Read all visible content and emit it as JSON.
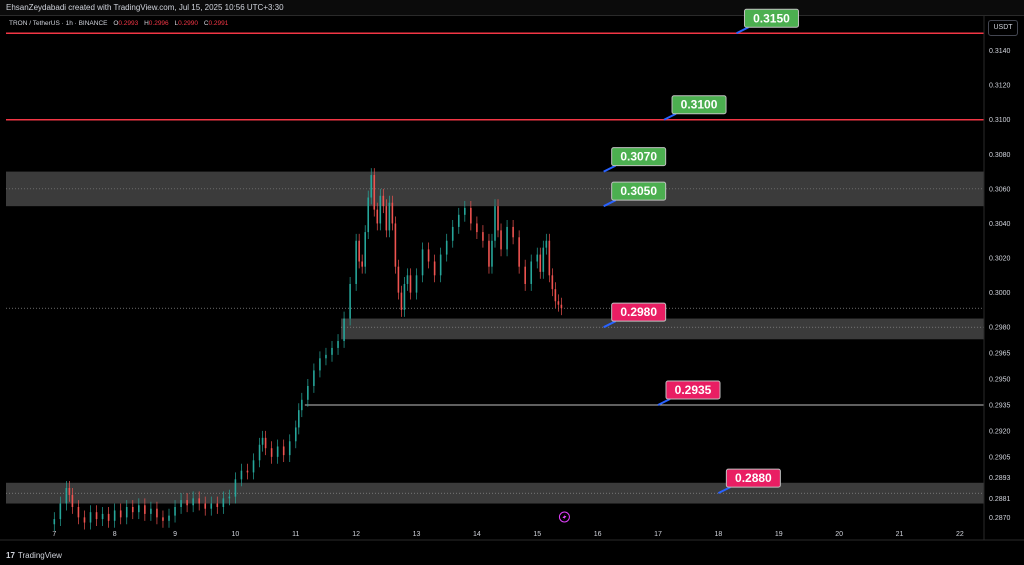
{
  "header": {
    "credit": "EhsanZeydabadi created with TradingView.com, Jul 15, 2025 10:56 UTC+3:30"
  },
  "legend": {
    "symbol": "TRON / TetherUS · 1h · BINANCE",
    "o_label": "O",
    "o_value": "0.2993",
    "h_label": "H",
    "h_value": "0.2996",
    "l_label": "L",
    "l_value": "0.2990",
    "c_label": "C",
    "c_value": "0.2991"
  },
  "currency": "USDT",
  "footer": {
    "logo_text": "TradingView",
    "logo_mark": "17"
  },
  "colors": {
    "bull": "#26a69a",
    "bear": "#ef5350",
    "resistance": "#f23645",
    "label_green": "#4caf50",
    "label_red": "#e91e63",
    "zone": "#6b6b6b",
    "arrow": "#2962ff"
  },
  "icons": {
    "flash": "lightning-circle-icon"
  },
  "chart_data": {
    "type": "candlestick",
    "timeframe": "1h",
    "ylim": [
      0.2865,
      0.316
    ],
    "y_ticks": [
      "0.3140",
      "0.3120",
      "0.3100",
      "0.3080",
      "0.3060",
      "0.3040",
      "0.3020",
      "0.3000",
      "0.2980",
      "0.2965",
      "0.2950",
      "0.2935",
      "0.2920",
      "0.2905",
      "0.2893",
      "0.2881",
      "0.2870"
    ],
    "x_ticks": [
      "7",
      "8",
      "9",
      "10",
      "11",
      "12",
      "13",
      "14",
      "15",
      "16",
      "17",
      "18",
      "19",
      "20",
      "21",
      "22"
    ],
    "last_price": "0.2991",
    "countdown": "33:02",
    "last_price_value": 0.2991,
    "candles": [
      [
        7.0,
        0.2866,
        0.2869
      ],
      [
        7.1,
        0.2869,
        0.2878
      ],
      [
        7.2,
        0.2878,
        0.2887
      ],
      [
        7.25,
        0.2887,
        0.2883
      ],
      [
        7.3,
        0.2883,
        0.2876
      ],
      [
        7.4,
        0.2876,
        0.287
      ],
      [
        7.5,
        0.287,
        0.2867
      ],
      [
        7.6,
        0.2867,
        0.2873
      ],
      [
        7.7,
        0.2873,
        0.2869
      ],
      [
        7.8,
        0.2869,
        0.2872
      ],
      [
        7.9,
        0.2872,
        0.2868
      ],
      [
        8.0,
        0.2868,
        0.2874
      ],
      [
        8.1,
        0.2874,
        0.287
      ],
      [
        8.2,
        0.287,
        0.2876
      ],
      [
        8.3,
        0.2876,
        0.2873
      ],
      [
        8.4,
        0.2873,
        0.2877
      ],
      [
        8.5,
        0.2877,
        0.2872
      ],
      [
        8.6,
        0.2872,
        0.2875
      ],
      [
        8.7,
        0.2875,
        0.287
      ],
      [
        8.8,
        0.287,
        0.2868
      ],
      [
        8.9,
        0.2868,
        0.2871
      ],
      [
        9.0,
        0.2871,
        0.2876
      ],
      [
        9.1,
        0.2876,
        0.288
      ],
      [
        9.2,
        0.288,
        0.2877
      ],
      [
        9.3,
        0.2877,
        0.2881
      ],
      [
        9.4,
        0.2881,
        0.2878
      ],
      [
        9.5,
        0.2878,
        0.2875
      ],
      [
        9.6,
        0.2875,
        0.2878
      ],
      [
        9.7,
        0.2878,
        0.2876
      ],
      [
        9.8,
        0.2876,
        0.2881
      ],
      [
        9.9,
        0.2881,
        0.2882
      ],
      [
        10.0,
        0.2882,
        0.2892
      ],
      [
        10.1,
        0.2892,
        0.2897
      ],
      [
        10.2,
        0.2897,
        0.2896
      ],
      [
        10.3,
        0.2896,
        0.2903
      ],
      [
        10.4,
        0.2903,
        0.2912
      ],
      [
        10.45,
        0.2912,
        0.2916
      ],
      [
        10.5,
        0.2916,
        0.291
      ],
      [
        10.6,
        0.291,
        0.2905
      ],
      [
        10.7,
        0.2905,
        0.2911
      ],
      [
        10.8,
        0.2911,
        0.2906
      ],
      [
        10.9,
        0.2906,
        0.2914
      ],
      [
        11.0,
        0.2914,
        0.2922
      ],
      [
        11.05,
        0.2922,
        0.2932
      ],
      [
        11.1,
        0.2932,
        0.2938
      ],
      [
        11.2,
        0.2938,
        0.2946
      ],
      [
        11.3,
        0.2946,
        0.2955
      ],
      [
        11.4,
        0.2955,
        0.2962
      ],
      [
        11.5,
        0.2962,
        0.2964
      ],
      [
        11.6,
        0.2964,
        0.2968
      ],
      [
        11.7,
        0.2968,
        0.2972
      ],
      [
        11.8,
        0.2972,
        0.2985
      ],
      [
        11.9,
        0.2985,
        0.3005
      ],
      [
        12.0,
        0.3005,
        0.303
      ],
      [
        12.05,
        0.303,
        0.3018
      ],
      [
        12.1,
        0.3018,
        0.3015
      ],
      [
        12.15,
        0.3015,
        0.3035
      ],
      [
        12.2,
        0.3035,
        0.3055
      ],
      [
        12.25,
        0.3055,
        0.3068
      ],
      [
        12.3,
        0.3068,
        0.3048
      ],
      [
        12.35,
        0.3048,
        0.304
      ],
      [
        12.4,
        0.304,
        0.3056
      ],
      [
        12.45,
        0.3056,
        0.305
      ],
      [
        12.5,
        0.305,
        0.3036
      ],
      [
        12.55,
        0.3036,
        0.3052
      ],
      [
        12.6,
        0.3052,
        0.304
      ],
      [
        12.65,
        0.304,
        0.3015
      ],
      [
        12.7,
        0.3015,
        0.3
      ],
      [
        12.75,
        0.3,
        0.299
      ],
      [
        12.8,
        0.299,
        0.3005
      ],
      [
        12.85,
        0.3005,
        0.301
      ],
      [
        12.9,
        0.301,
        0.3
      ],
      [
        13.0,
        0.3,
        0.301
      ],
      [
        13.1,
        0.301,
        0.3025
      ],
      [
        13.2,
        0.3025,
        0.3018
      ],
      [
        13.3,
        0.3018,
        0.301
      ],
      [
        13.4,
        0.301,
        0.3022
      ],
      [
        13.5,
        0.3022,
        0.303
      ],
      [
        13.6,
        0.303,
        0.3038
      ],
      [
        13.7,
        0.3038,
        0.3045
      ],
      [
        13.8,
        0.3045,
        0.3049
      ],
      [
        13.9,
        0.3049,
        0.304
      ],
      [
        14.0,
        0.304,
        0.3035
      ],
      [
        14.1,
        0.3035,
        0.303
      ],
      [
        14.2,
        0.303,
        0.3015
      ],
      [
        14.25,
        0.3015,
        0.303
      ],
      [
        14.3,
        0.303,
        0.305
      ],
      [
        14.35,
        0.305,
        0.3036
      ],
      [
        14.4,
        0.3036,
        0.3025
      ],
      [
        14.5,
        0.3025,
        0.3038
      ],
      [
        14.6,
        0.3038,
        0.3032
      ],
      [
        14.7,
        0.3032,
        0.3015
      ],
      [
        14.8,
        0.3015,
        0.3005
      ],
      [
        14.9,
        0.3005,
        0.3018
      ],
      [
        15.0,
        0.3018,
        0.3022
      ],
      [
        15.05,
        0.3022,
        0.3012
      ],
      [
        15.1,
        0.3012,
        0.3026
      ],
      [
        15.15,
        0.3026,
        0.303
      ],
      [
        15.2,
        0.303,
        0.301
      ],
      [
        15.25,
        0.301,
        0.3002
      ],
      [
        15.3,
        0.3002,
        0.2995
      ],
      [
        15.35,
        0.2995,
        0.2993
      ],
      [
        15.4,
        0.2993,
        0.2991
      ]
    ],
    "horizontal_levels": [
      {
        "price": 0.315,
        "label": "0.3150",
        "style": "resistance-line",
        "label_color": "green"
      },
      {
        "price": 0.31,
        "label": "0.3100",
        "style": "resistance-line",
        "label_color": "green"
      },
      {
        "price": 0.2935,
        "label": "0.2935",
        "style": "thin-line",
        "label_color": "red",
        "axis_badge": "0.2935"
      }
    ],
    "zones": [
      {
        "from": 0.305,
        "to": 0.307,
        "labels": [
          "0.3070",
          "0.3050"
        ],
        "label_color": "green",
        "mid": 0.306
      },
      {
        "from": 0.2973,
        "to": 0.2985,
        "labels": [
          "0.2980"
        ],
        "label_color": "red",
        "mid": 0.298
      },
      {
        "from": 0.2878,
        "to": 0.289,
        "labels": [
          "0.2880"
        ],
        "label_color": "red",
        "mid": 0.2884
      }
    ]
  }
}
